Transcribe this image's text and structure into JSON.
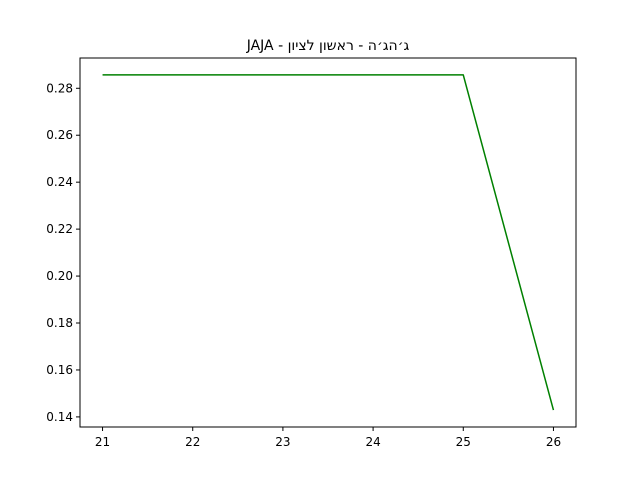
{
  "chart_data": {
    "type": "line",
    "title": "JAJA - ג׳הג׳ה - ראשון לציון",
    "xlabel": "",
    "ylabel": "",
    "x": [
      21,
      22,
      23,
      24,
      25,
      26
    ],
    "series": [
      {
        "values": [
          0.2857,
          0.2857,
          0.2857,
          0.2857,
          0.2857,
          0.1429
        ],
        "color": "#008000"
      }
    ],
    "xlim": [
      20.75,
      26.25
    ],
    "ylim": [
      0.1357,
      0.2929
    ],
    "xticks": [
      21,
      22,
      23,
      24,
      25,
      26
    ],
    "xtick_labels": [
      "21",
      "22",
      "23",
      "24",
      "25",
      "26"
    ],
    "yticks": [
      0.14,
      0.16,
      0.18,
      0.2,
      0.22,
      0.24,
      0.26,
      0.28
    ],
    "ytick_labels": [
      "0.14",
      "0.16",
      "0.18",
      "0.20",
      "0.22",
      "0.24",
      "0.26",
      "0.28"
    ],
    "grid": false,
    "legend": "none"
  }
}
